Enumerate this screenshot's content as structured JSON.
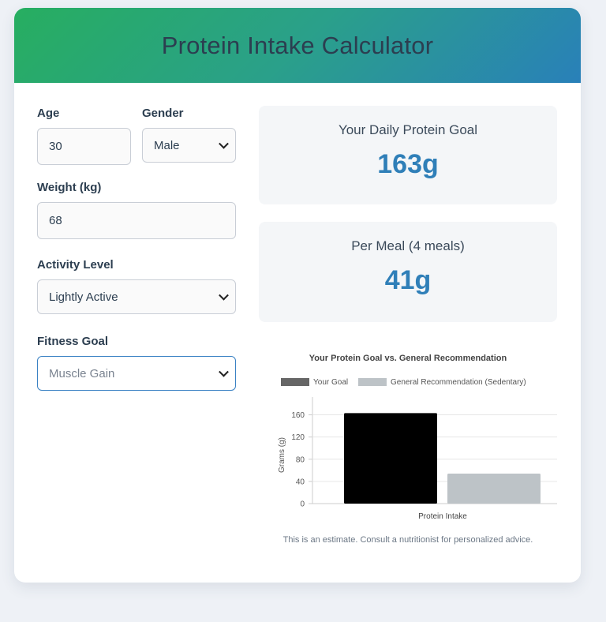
{
  "app": {
    "title": "Protein Intake Calculator"
  },
  "form": {
    "age_label": "Age",
    "age_value": "30",
    "gender_label": "Gender",
    "gender_value": "Male",
    "weight_label": "Weight (kg)",
    "weight_value": "68",
    "activity_label": "Activity Level",
    "activity_value": "Lightly Active",
    "goal_label": "Fitness Goal",
    "goal_value": "Muscle Gain"
  },
  "results": {
    "daily_title": "Your Daily Protein Goal",
    "daily_value": "163g",
    "meal_title": "Per Meal (4 meals)",
    "meal_value": "41g"
  },
  "chart_data": {
    "type": "bar",
    "title": "Your Protein Goal vs. General Recommendation",
    "categories": [
      "Protein Intake"
    ],
    "series": [
      {
        "name": "Your Goal",
        "values": [
          163
        ],
        "color": "#000000",
        "legend_color": "#666666"
      },
      {
        "name": "General Recommendation (Sedentary)",
        "values": [
          54
        ],
        "color": "#bdc3c7",
        "legend_color": "#bdc3c7"
      }
    ],
    "ylabel": "Grams (g)",
    "yticks": [
      0,
      40,
      80,
      120,
      160
    ],
    "ylim": [
      0,
      175
    ],
    "grid": true,
    "legend": "top"
  },
  "footer": {
    "disclaimer": "This is an estimate. Consult a nutritionist for personalized advice."
  }
}
